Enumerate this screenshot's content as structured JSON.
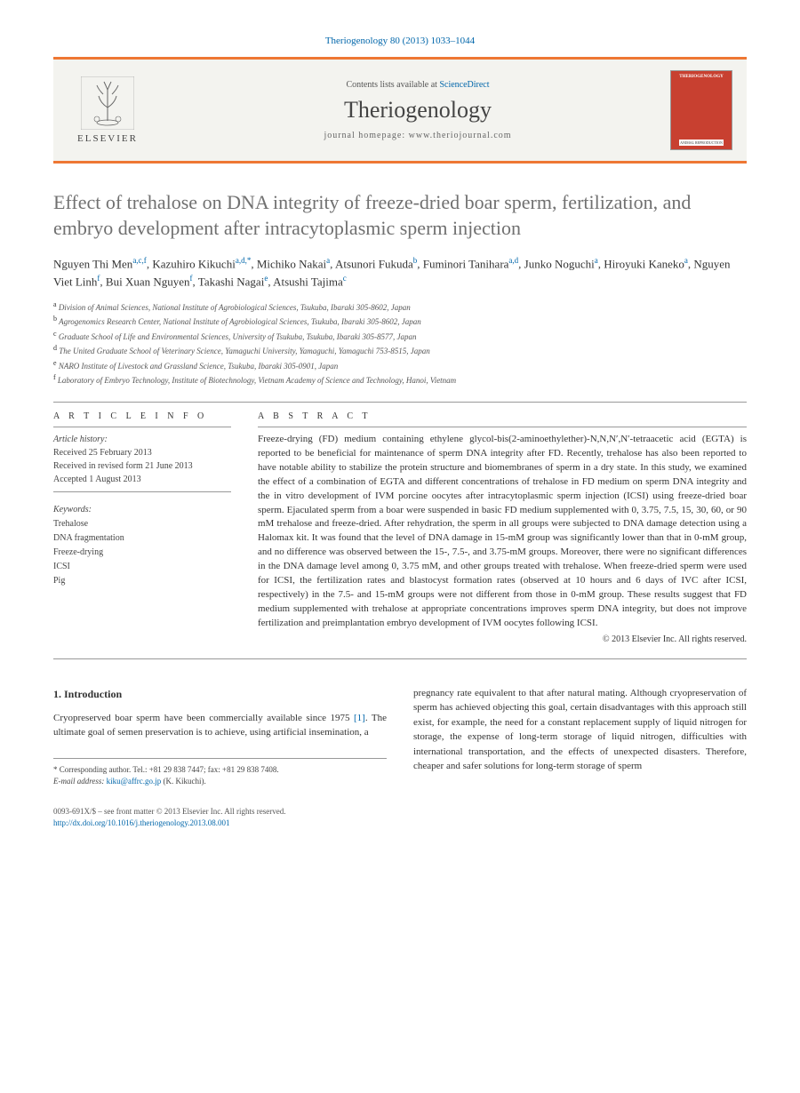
{
  "citation": "Theriogenology 80 (2013) 1033–1044",
  "header": {
    "publisher": "ELSEVIER",
    "contents_prefix": "Contents lists available at ",
    "contents_link": "ScienceDirect",
    "journal_name": "Theriogenology",
    "homepage_prefix": "journal homepage: ",
    "homepage_url": "www.theriojournal.com",
    "cover_title": "THERIOGENOLOGY",
    "cover_sub": "ANIMAL REPRODUCTION"
  },
  "article": {
    "title": "Effect of trehalose on DNA integrity of freeze-dried boar sperm, fertilization, and embryo development after intracytoplasmic sperm injection",
    "authors": [
      {
        "name": "Nguyen Thi Men",
        "aff": "a,c,f"
      },
      {
        "name": "Kazuhiro Kikuchi",
        "aff": "a,d,*"
      },
      {
        "name": "Michiko Nakai",
        "aff": "a"
      },
      {
        "name": "Atsunori Fukuda",
        "aff": "b"
      },
      {
        "name": "Fuminori Tanihara",
        "aff": "a,d"
      },
      {
        "name": "Junko Noguchi",
        "aff": "a"
      },
      {
        "name": "Hiroyuki Kaneko",
        "aff": "a"
      },
      {
        "name": "Nguyen Viet Linh",
        "aff": "f"
      },
      {
        "name": "Bui Xuan Nguyen",
        "aff": "f"
      },
      {
        "name": "Takashi Nagai",
        "aff": "e"
      },
      {
        "name": "Atsushi Tajima",
        "aff": "c"
      }
    ],
    "affiliations": [
      {
        "key": "a",
        "text": "Division of Animal Sciences, National Institute of Agrobiological Sciences, Tsukuba, Ibaraki 305-8602, Japan"
      },
      {
        "key": "b",
        "text": "Agrogenomics Research Center, National Institute of Agrobiological Sciences, Tsukuba, Ibaraki 305-8602, Japan"
      },
      {
        "key": "c",
        "text": "Graduate School of Life and Environmental Sciences, University of Tsukuba, Tsukuba, Ibaraki 305-8577, Japan"
      },
      {
        "key": "d",
        "text": "The United Graduate School of Veterinary Science, Yamaguchi University, Yamaguchi, Yamaguchi 753-8515, Japan"
      },
      {
        "key": "e",
        "text": "NARO Institute of Livestock and Grassland Science, Tsukuba, Ibaraki 305-0901, Japan"
      },
      {
        "key": "f",
        "text": "Laboratory of Embryo Technology, Institute of Biotechnology, Vietnam Academy of Science and Technology, Hanoi, Vietnam"
      }
    ]
  },
  "info": {
    "label_article_info": "A R T I C L E   I N F O",
    "history_label": "Article history:",
    "received": "Received 25 February 2013",
    "revised": "Received in revised form 21 June 2013",
    "accepted": "Accepted 1 August 2013",
    "keywords_label": "Keywords:",
    "keywords": [
      "Trehalose",
      "DNA fragmentation",
      "Freeze-drying",
      "ICSI",
      "Pig"
    ]
  },
  "abstract": {
    "label": "A B S T R A C T",
    "text": "Freeze-drying (FD) medium containing ethylene glycol-bis(2-aminoethylether)-N,N,N′,N′-tetraacetic acid (EGTA) is reported to be beneficial for maintenance of sperm DNA integrity after FD. Recently, trehalose has also been reported to have notable ability to stabilize the protein structure and biomembranes of sperm in a dry state. In this study, we examined the effect of a combination of EGTA and different concentrations of trehalose in FD medium on sperm DNA integrity and the in vitro development of IVM porcine oocytes after intracytoplasmic sperm injection (ICSI) using freeze-dried boar sperm. Ejaculated sperm from a boar were suspended in basic FD medium supplemented with 0, 3.75, 7.5, 15, 30, 60, or 90 mM trehalose and freeze-dried. After rehydration, the sperm in all groups were subjected to DNA damage detection using a Halomax kit. It was found that the level of DNA damage in 15-mM group was significantly lower than that in 0-mM group, and no difference was observed between the 15-, 7.5-, and 3.75-mM groups. Moreover, there were no significant differences in the DNA damage level among 0, 3.75 mM, and other groups treated with trehalose. When freeze-dried sperm were used for ICSI, the fertilization rates and blastocyst formation rates (observed at 10 hours and 6 days of IVC after ICSI, respectively) in the 7.5- and 15-mM groups were not different from those in 0-mM group. These results suggest that FD medium supplemented with trehalose at appropriate concentrations improves sperm DNA integrity, but does not improve fertilization and preimplantation embryo development of IVM oocytes following ICSI.",
    "copyright": "© 2013 Elsevier Inc. All rights reserved."
  },
  "body": {
    "section_heading": "1. Introduction",
    "col1": "Cryopreserved boar sperm have been commercially available since 1975 [1]. The ultimate goal of semen preservation is to achieve, using artificial insemination, a",
    "col2": "pregnancy rate equivalent to that after natural mating. Although cryopreservation of sperm has achieved objecting this goal, certain disadvantages with this approach still exist, for example, the need for a constant replacement supply of liquid nitrogen for storage, the expense of long-term storage of liquid nitrogen, difficulties with international transportation, and the effects of unexpected disasters. Therefore, cheaper and safer solutions for long-term storage of sperm"
  },
  "corresponding": {
    "note": "* Corresponding author. Tel.: +81 29 838 7447; fax: +81 29 838 7408.",
    "email_label": "E-mail address: ",
    "email": "kiku@affrc.go.jp",
    "email_suffix": " (K. Kikuchi)."
  },
  "footer": {
    "line1": "0093-691X/$ – see front matter © 2013 Elsevier Inc. All rights reserved.",
    "doi": "http://dx.doi.org/10.1016/j.theriogenology.2013.08.001"
  },
  "colors": {
    "accent_orange": "#ee7733",
    "link_blue": "#0066aa",
    "header_bg": "#f3f3ef",
    "cover_red": "#c84030",
    "title_gray": "#707070"
  }
}
